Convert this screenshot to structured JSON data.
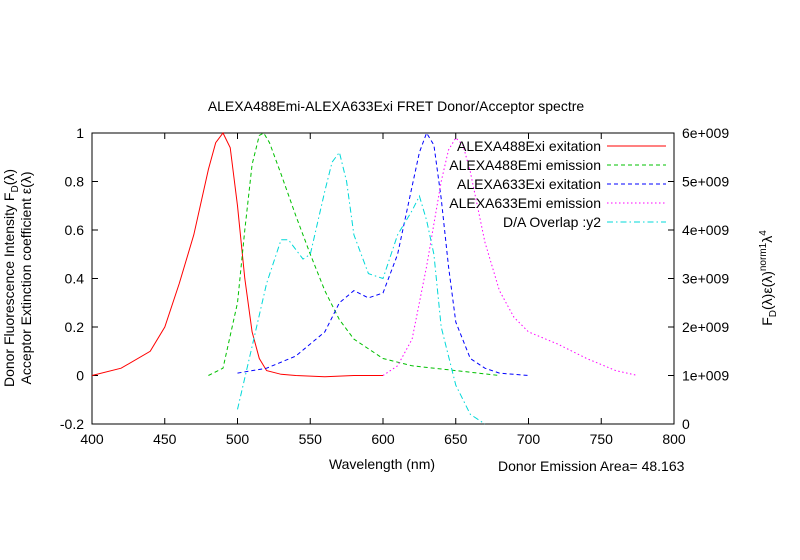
{
  "chart_data": {
    "type": "line",
    "title": "ALEXA488Emi-ALEXA633Exi FRET Donor/Acceptor spectre",
    "xlabel": "Wavelength (nm)",
    "ylabel_line1": "Donor Fluorescence Intensity F",
    "ylabel_line1_sub": "D",
    "ylabel_line1_tail": "(λ)",
    "ylabel_line2": "Acceptor Extinction coefficient ε(λ)",
    "y2label_main": "F",
    "y2label_sub": "D",
    "y2label_mid": "(λ)ε(λ)",
    "y2label_sup": "norm1",
    "y2label_tail": "λ",
    "y2label_sup2": "4",
    "footer": "Donor Emission Area= 48.163",
    "xlim": [
      400,
      800
    ],
    "ylim": [
      -0.2,
      1
    ],
    "y2lim": [
      0,
      6000000000
    ],
    "x_ticks": [
      "400",
      "450",
      "500",
      "550",
      "600",
      "650",
      "700",
      "750",
      "800"
    ],
    "y_ticks": [
      "-0.2",
      "0",
      "0.2",
      "0.4",
      "0.6",
      "0.8",
      "1"
    ],
    "y2_ticks": [
      "0",
      "1e+009",
      "2e+009",
      "3e+009",
      "4e+009",
      "5e+009",
      "6e+009"
    ],
    "legend_position": "top-right",
    "series": [
      {
        "name": "ALEXA488Exi exitation",
        "color": "#ff0000",
        "style": "solid",
        "axis": "y1",
        "x": [
          400,
          420,
          440,
          450,
          460,
          470,
          480,
          485,
          490,
          495,
          500,
          505,
          510,
          515,
          520,
          530,
          540,
          560,
          580,
          600
        ],
        "y": [
          0.0,
          0.03,
          0.1,
          0.2,
          0.38,
          0.58,
          0.85,
          0.96,
          1.0,
          0.94,
          0.7,
          0.4,
          0.18,
          0.07,
          0.02,
          0.005,
          0.0,
          -0.005,
          0.0,
          0.0
        ]
      },
      {
        "name": "ALEXA488Emi emission",
        "color": "#00c000",
        "style": "dashed",
        "axis": "y1",
        "x": [
          480,
          490,
          500,
          505,
          510,
          515,
          518,
          522,
          530,
          540,
          550,
          560,
          570,
          580,
          600,
          620,
          650,
          680
        ],
        "y": [
          0.0,
          0.03,
          0.3,
          0.6,
          0.87,
          0.99,
          1.0,
          0.96,
          0.83,
          0.66,
          0.5,
          0.35,
          0.23,
          0.15,
          0.07,
          0.04,
          0.02,
          0.0
        ]
      },
      {
        "name": "ALEXA633Exi exitation",
        "color": "#0000ff",
        "style": "dashed",
        "axis": "y1",
        "x": [
          500,
          520,
          540,
          560,
          570,
          580,
          590,
          600,
          610,
          620,
          625,
          630,
          635,
          640,
          645,
          650,
          660,
          670,
          680,
          700
        ],
        "y": [
          0.01,
          0.03,
          0.08,
          0.18,
          0.3,
          0.35,
          0.32,
          0.34,
          0.5,
          0.78,
          0.92,
          1.0,
          0.95,
          0.73,
          0.45,
          0.22,
          0.07,
          0.03,
          0.01,
          0.0
        ]
      },
      {
        "name": "ALEXA633Emi emission",
        "color": "#ff00ff",
        "style": "dotted",
        "axis": "y1",
        "x": [
          600,
          610,
          620,
          630,
          640,
          645,
          650,
          655,
          660,
          670,
          680,
          690,
          700,
          720,
          740,
          760,
          775
        ],
        "y": [
          0.0,
          0.04,
          0.15,
          0.45,
          0.8,
          0.93,
          0.98,
          0.95,
          0.84,
          0.55,
          0.35,
          0.24,
          0.18,
          0.13,
          0.07,
          0.02,
          0.0
        ]
      },
      {
        "name": "D/A Overlap :y2",
        "color": "#00d8d8",
        "style": "dashdot",
        "axis": "y2",
        "x": [
          500,
          510,
          520,
          530,
          535,
          545,
          550,
          560,
          565,
          570,
          575,
          580,
          590,
          600,
          610,
          620,
          625,
          630,
          635,
          640,
          650,
          660,
          670
        ],
        "y": [
          300000000,
          1600000000,
          2900000000,
          3800000000,
          3800000000,
          3400000000,
          3500000000,
          4800000000,
          5400000000,
          5600000000,
          5000000000,
          3900000000,
          3100000000,
          3000000000,
          3900000000,
          4400000000,
          4700000000,
          4200000000,
          3500000000,
          2000000000,
          800000000,
          200000000,
          0
        ]
      }
    ]
  }
}
